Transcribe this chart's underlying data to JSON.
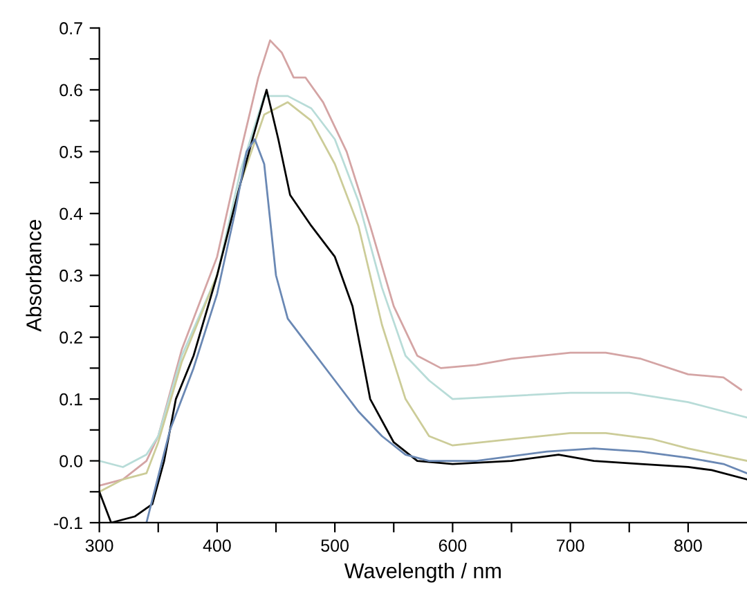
{
  "chart_data": {
    "type": "line",
    "xlabel": "Wavelength / nm",
    "ylabel": "Absorbance",
    "xlim": [
      300,
      850
    ],
    "ylim": [
      -0.1,
      0.7
    ],
    "xticks": [
      300,
      {
        "value": 350,
        "label": null
      },
      400,
      {
        "value": 450,
        "label": null
      },
      500,
      {
        "value": 550,
        "label": null
      },
      600,
      {
        "value": 650,
        "label": null
      },
      700,
      {
        "value": 750,
        "label": null
      },
      800
    ],
    "yticks": [
      {
        "value": -0.1,
        "label": "-0.1"
      },
      {
        "value": -0.05,
        "label": null
      },
      {
        "value": 0,
        "label": "0.0"
      },
      {
        "value": 0.05,
        "label": null
      },
      0.1,
      {
        "value": 0.15,
        "label": null
      },
      0.2,
      {
        "value": 0.25,
        "label": null
      },
      0.3,
      {
        "value": 0.35,
        "label": null
      },
      0.4,
      {
        "value": 0.45,
        "label": null
      },
      0.5,
      {
        "value": 0.55,
        "label": null
      },
      0.6,
      {
        "value": 0.65,
        "label": null
      },
      0.7
    ],
    "grid": false,
    "legend": false,
    "marker": "none",
    "line_style": "solid",
    "series": [
      {
        "color": "#d4a4a4",
        "x": [
          300,
          320,
          340,
          350,
          370,
          400,
          420,
          435,
          445,
          455,
          465,
          475,
          490,
          510,
          530,
          550,
          570,
          590,
          620,
          650,
          700,
          730,
          760,
          800,
          830,
          845
        ],
        "values": [
          -0.04,
          -0.03,
          0.0,
          0.04,
          0.18,
          0.33,
          0.5,
          0.62,
          0.68,
          0.66,
          0.62,
          0.62,
          0.58,
          0.5,
          0.38,
          0.25,
          0.17,
          0.15,
          0.155,
          0.165,
          0.175,
          0.175,
          0.165,
          0.14,
          0.135,
          0.115
        ]
      },
      {
        "color": "#b8dcd8",
        "x": [
          300,
          320,
          340,
          350,
          370,
          400,
          420,
          440,
          460,
          480,
          500,
          520,
          540,
          560,
          580,
          600,
          650,
          700,
          750,
          800,
          850
        ],
        "values": [
          0.0,
          -0.01,
          0.01,
          0.04,
          0.17,
          0.3,
          0.47,
          0.59,
          0.59,
          0.57,
          0.52,
          0.42,
          0.28,
          0.17,
          0.13,
          0.1,
          0.105,
          0.11,
          0.11,
          0.095,
          0.07
        ]
      },
      {
        "color": "#cccc98",
        "x": [
          300,
          320,
          340,
          350,
          370,
          400,
          420,
          440,
          460,
          480,
          500,
          520,
          540,
          560,
          580,
          600,
          650,
          700,
          730,
          770,
          800,
          850
        ],
        "values": [
          -0.05,
          -0.03,
          -0.02,
          0.03,
          0.16,
          0.3,
          0.45,
          0.56,
          0.58,
          0.55,
          0.48,
          0.38,
          0.22,
          0.1,
          0.04,
          0.025,
          0.035,
          0.045,
          0.045,
          0.035,
          0.02,
          0.0
        ]
      },
      {
        "color": "#000000",
        "x": [
          300,
          310,
          330,
          345,
          355,
          365,
          380,
          400,
          420,
          430,
          442,
          452,
          462,
          480,
          500,
          515,
          530,
          550,
          570,
          600,
          650,
          690,
          720,
          760,
          800,
          820,
          850
        ],
        "values": [
          -0.05,
          -0.1,
          -0.09,
          -0.07,
          0.0,
          0.1,
          0.17,
          0.3,
          0.45,
          0.52,
          0.6,
          0.52,
          0.43,
          0.38,
          0.33,
          0.25,
          0.1,
          0.03,
          0.0,
          -0.005,
          0.0,
          0.01,
          0.0,
          -0.005,
          -0.01,
          -0.015,
          -0.03
        ]
      },
      {
        "color": "#6a88b4",
        "x": [
          340,
          360,
          380,
          400,
          415,
          425,
          432,
          440,
          450,
          460,
          480,
          500,
          520,
          540,
          560,
          580,
          620,
          680,
          720,
          760,
          800,
          830,
          850
        ],
        "values": [
          -0.1,
          0.05,
          0.15,
          0.27,
          0.4,
          0.5,
          0.52,
          0.48,
          0.3,
          0.23,
          0.18,
          0.13,
          0.08,
          0.04,
          0.01,
          0.0,
          0.0,
          0.015,
          0.02,
          0.015,
          0.005,
          -0.005,
          -0.02
        ]
      }
    ]
  }
}
